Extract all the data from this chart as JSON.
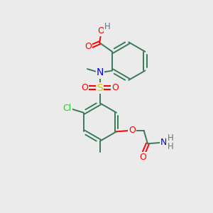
{
  "bg_color": "#ebebeb",
  "bond_color": "#3a7a5a",
  "atom_colors": {
    "O": "#ff0000",
    "N": "#0000ee",
    "S": "#cccc00",
    "Cl": "#22cc22",
    "H": "#607878",
    "C": "#3a7a5a"
  },
  "figsize": [
    3.0,
    3.0
  ],
  "dpi": 100
}
